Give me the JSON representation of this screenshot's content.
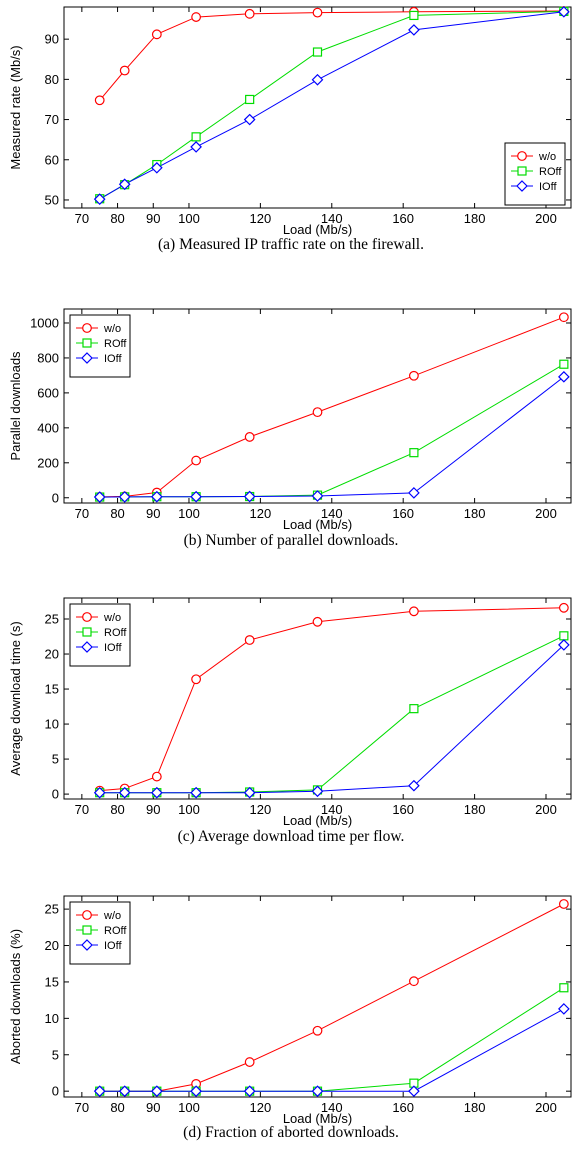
{
  "chart_data": [
    {
      "type": "line",
      "caption": "(a) Measured IP traffic rate on the firewall.",
      "xlabel": "Load (Mb/s)",
      "ylabel": "Measured rate (Mb/s)",
      "xlim": [
        65,
        207
      ],
      "ylim": [
        48,
        98
      ],
      "xticks": [
        70,
        80,
        90,
        100,
        120,
        140,
        160,
        180,
        200
      ],
      "yticks": [
        50,
        60,
        70,
        80,
        90
      ],
      "legend": "bottom-right",
      "x": [
        75,
        82,
        91,
        102,
        117,
        136,
        163,
        205
      ],
      "series": [
        {
          "name": "w/o",
          "color": "#ff0000",
          "marker": "circle",
          "values": [
            74.8,
            82.2,
            91.2,
            95.5,
            96.3,
            96.6,
            96.8,
            97.0
          ]
        },
        {
          "name": "ROff",
          "color": "#00dd00",
          "marker": "square",
          "values": [
            50.3,
            53.8,
            58.8,
            65.7,
            75.0,
            86.8,
            95.9,
            96.9
          ]
        },
        {
          "name": "IOff",
          "color": "#0000ff",
          "marker": "diamond",
          "values": [
            50.2,
            53.9,
            58.0,
            63.2,
            70.0,
            79.9,
            92.3,
            96.8
          ]
        }
      ]
    },
    {
      "type": "line",
      "caption": "(b) Number of parallel downloads.",
      "xlabel": "Load (Mb/s)",
      "ylabel": "Parallel downloads",
      "xlim": [
        65,
        207
      ],
      "ylim": [
        -30,
        1080
      ],
      "xticks": [
        70,
        80,
        90,
        100,
        120,
        140,
        160,
        180,
        200
      ],
      "yticks": [
        0,
        200,
        400,
        600,
        800,
        1000
      ],
      "legend": "top-left",
      "x": [
        75,
        82,
        91,
        102,
        117,
        136,
        163,
        205
      ],
      "series": [
        {
          "name": "w/o",
          "color": "#ff0000",
          "marker": "circle",
          "values": [
            5,
            8,
            30,
            213,
            348,
            490,
            698,
            1033
          ]
        },
        {
          "name": "ROff",
          "color": "#00dd00",
          "marker": "square",
          "values": [
            4,
            5,
            6,
            6,
            7,
            15,
            258,
            764
          ]
        },
        {
          "name": "IOff",
          "color": "#0000ff",
          "marker": "diamond",
          "values": [
            4,
            5,
            6,
            6,
            7,
            10,
            28,
            692
          ]
        }
      ]
    },
    {
      "type": "line",
      "caption": "(c) Average download time per flow.",
      "xlabel": "Load (Mb/s)",
      "ylabel": "Average download time (s)",
      "xlim": [
        65,
        207
      ],
      "ylim": [
        -0.7,
        28
      ],
      "xticks": [
        70,
        80,
        90,
        100,
        120,
        140,
        160,
        180,
        200
      ],
      "yticks": [
        0,
        5,
        10,
        15,
        20,
        25
      ],
      "legend": "top-left",
      "x": [
        75,
        82,
        91,
        102,
        117,
        136,
        163,
        205
      ],
      "series": [
        {
          "name": "w/o",
          "color": "#ff0000",
          "marker": "circle",
          "values": [
            0.5,
            0.8,
            2.5,
            16.4,
            22.0,
            24.6,
            26.1,
            26.6
          ]
        },
        {
          "name": "ROff",
          "color": "#00dd00",
          "marker": "square",
          "values": [
            0.2,
            0.2,
            0.2,
            0.2,
            0.3,
            0.6,
            12.2,
            22.6
          ]
        },
        {
          "name": "IOff",
          "color": "#0000ff",
          "marker": "diamond",
          "values": [
            0.2,
            0.2,
            0.2,
            0.2,
            0.2,
            0.4,
            1.2,
            21.3
          ]
        }
      ]
    },
    {
      "type": "line",
      "caption": "(d) Fraction of aborted downloads.",
      "xlabel": "Load (Mb/s)",
      "ylabel": "Aborted downloads (%)",
      "xlim": [
        65,
        207
      ],
      "ylim": [
        -0.8,
        26.8
      ],
      "xticks": [
        70,
        80,
        90,
        100,
        120,
        140,
        160,
        180,
        200
      ],
      "yticks": [
        0,
        5,
        10,
        15,
        20,
        25
      ],
      "legend": "top-left",
      "x": [
        75,
        82,
        91,
        102,
        117,
        136,
        163,
        205
      ],
      "series": [
        {
          "name": "w/o",
          "color": "#ff0000",
          "marker": "circle",
          "values": [
            0,
            0,
            0,
            1.0,
            4.0,
            8.3,
            15.1,
            25.7
          ]
        },
        {
          "name": "ROff",
          "color": "#00dd00",
          "marker": "square",
          "values": [
            0,
            0,
            0,
            0,
            0,
            0,
            1.1,
            14.2
          ]
        },
        {
          "name": "IOff",
          "color": "#0000ff",
          "marker": "diamond",
          "values": [
            0,
            0,
            0,
            0,
            0,
            0,
            0,
            11.3
          ]
        }
      ]
    }
  ]
}
